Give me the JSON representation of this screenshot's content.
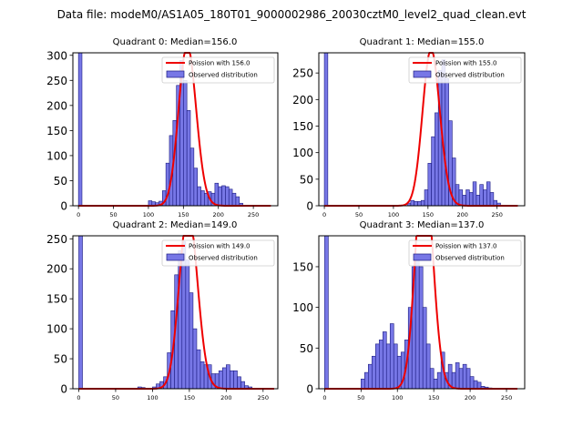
{
  "figure_title": "Data file: modeM0/AS1A05_180T01_9000002986_20030cztM0_level2_quad_clean.evt",
  "colors": {
    "hist_fill": "#7777e6",
    "hist_edge": "#1a1a80",
    "fit_line": "#ee0000"
  },
  "chart_data": [
    {
      "type": "bar",
      "title": "Quadrant 0: Median=156.0",
      "median": 156.0,
      "xlim": [
        -8,
        285
      ],
      "ylim": [
        0,
        305
      ],
      "xticks": [
        0,
        50,
        100,
        150,
        200,
        250
      ],
      "yticks": [
        0,
        50,
        100,
        150,
        200,
        250,
        300
      ],
      "bin_start": 0,
      "bin_width": 5,
      "hist": [
        305,
        0,
        0,
        0,
        0,
        0,
        0,
        0,
        0,
        0,
        0,
        0,
        0,
        0,
        0,
        0,
        0,
        0,
        0,
        0,
        10,
        8,
        6,
        9,
        30,
        85,
        140,
        170,
        240,
        290,
        250,
        190,
        115,
        75,
        38,
        30,
        25,
        28,
        25,
        45,
        38,
        40,
        38,
        33,
        25,
        18,
        5,
        1,
        0,
        0,
        0,
        0,
        0,
        0,
        0
      ],
      "fit_label": "Poission with 156.0",
      "fit_mean": 156.0,
      "fit_x": [
        0,
        275
      ],
      "legend": [
        "Poission with 156.0",
        "Observed distribution"
      ]
    },
    {
      "type": "bar",
      "title": "Quadrant 1: Median=155.0",
      "median": 155.0,
      "xlim": [
        -8,
        290
      ],
      "ylim": [
        0,
        288
      ],
      "xticks": [
        0,
        50,
        100,
        150,
        200,
        250
      ],
      "yticks": [
        0,
        50,
        100,
        150,
        200,
        250
      ],
      "bin_start": 0,
      "bin_width": 5,
      "hist": [
        288,
        0,
        0,
        0,
        0,
        0,
        0,
        0,
        0,
        0,
        0,
        0,
        0,
        0,
        0,
        0,
        0,
        0,
        0,
        0,
        0,
        0,
        0,
        0,
        5,
        10,
        8,
        8,
        10,
        30,
        80,
        130,
        175,
        255,
        275,
        240,
        160,
        90,
        40,
        30,
        20,
        30,
        25,
        45,
        20,
        40,
        30,
        45,
        25,
        10,
        5,
        0,
        0,
        0,
        0,
        0,
        0
      ],
      "fit_label": "Poission with 155.0",
      "fit_mean": 155.0,
      "fit_x": [
        0,
        280
      ],
      "legend": [
        "Poission with 155.0",
        "Observed distribution"
      ]
    },
    {
      "type": "bar",
      "title": "Quadrant 2: Median=149.0",
      "median": 149.0,
      "xlim": [
        -8,
        270
      ],
      "ylim": [
        0,
        255
      ],
      "xticks": [
        0,
        50,
        100,
        150,
        200,
        250
      ],
      "yticks": [
        0,
        50,
        100,
        150,
        200,
        250
      ],
      "bin_start": 0,
      "bin_width": 5,
      "hist": [
        255,
        0,
        0,
        0,
        0,
        0,
        0,
        0,
        0,
        0,
        0,
        0,
        0,
        0,
        0,
        0,
        3,
        2,
        0,
        0,
        3,
        8,
        12,
        20,
        60,
        130,
        190,
        230,
        245,
        215,
        160,
        100,
        65,
        45,
        40,
        40,
        25,
        25,
        30,
        35,
        40,
        30,
        30,
        20,
        12,
        5,
        3
      ],
      "fit_label": "Poission with 149.0",
      "fit_mean": 149.0,
      "fit_x": [
        0,
        265
      ],
      "legend": [
        "Poission with 149.0",
        "Observed distribution"
      ]
    },
    {
      "type": "bar",
      "title": "Quadrant 3: Median=137.0",
      "median": 137.0,
      "xlim": [
        -8,
        275
      ],
      "ylim": [
        0,
        188
      ],
      "xticks": [
        0,
        50,
        100,
        150,
        200,
        250
      ],
      "yticks": [
        0,
        50,
        100,
        150
      ],
      "bin_start": 0,
      "bin_width": 5,
      "hist": [
        188,
        0,
        0,
        0,
        0,
        0,
        0,
        0,
        0,
        0,
        12,
        20,
        30,
        40,
        55,
        60,
        70,
        55,
        80,
        55,
        40,
        45,
        60,
        100,
        150,
        160,
        150,
        100,
        55,
        25,
        12,
        20,
        45,
        20,
        30,
        20,
        32,
        25,
        30,
        25,
        15,
        10,
        8,
        3,
        2,
        1,
        0,
        0,
        0,
        0,
        0,
        0,
        0,
        0,
        0
      ],
      "fit_label": "Poission with 137.0",
      "fit_mean": 137.0,
      "fit_x": [
        0,
        265
      ],
      "legend": [
        "Poission with 137.0",
        "Observed distribution"
      ]
    }
  ]
}
